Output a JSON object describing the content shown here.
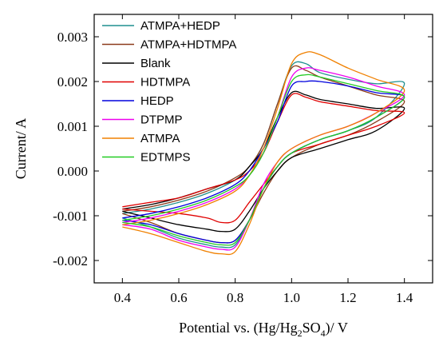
{
  "chart_data": {
    "type": "line",
    "xlabel": {
      "prefix": "Potential vs. (Hg/Hg",
      "sub1": "2",
      "mid": "SO",
      "sub2": "4",
      "suffix": ")/ V"
    },
    "ylabel": "Current/ A",
    "xlim": [
      0.3,
      1.5
    ],
    "ylim": [
      -0.0025,
      0.0035
    ],
    "xticks": [
      0.4,
      0.6,
      0.8,
      1.0,
      1.2,
      1.4
    ],
    "xtick_labels": [
      "0.4",
      "0.6",
      "0.8",
      "1.0",
      "1.2",
      "1.4"
    ],
    "yticks": [
      -0.002,
      -0.001,
      0.0,
      0.001,
      0.002,
      0.003
    ],
    "ytick_labels": [
      "-0.002",
      "-0.001",
      "0.000",
      "0.001",
      "0.002",
      "0.003"
    ],
    "legend_position": "top-left",
    "series": [
      {
        "name": "ATMPA+HEDP",
        "color": "#1f8f8f",
        "forward": [
          [
            0.4,
            -0.00095
          ],
          [
            0.5,
            -0.00085
          ],
          [
            0.6,
            -0.0007
          ],
          [
            0.7,
            -0.0005
          ],
          [
            0.8,
            -0.0002
          ],
          [
            0.85,
            0.0001
          ],
          [
            0.9,
            0.0006
          ],
          [
            0.95,
            0.0015
          ],
          [
            1.0,
            0.00235
          ],
          [
            1.05,
            0.0024
          ],
          [
            1.1,
            0.0022
          ],
          [
            1.2,
            0.00205
          ],
          [
            1.3,
            0.00195
          ],
          [
            1.4,
            0.00195
          ]
        ],
        "reverse": [
          [
            1.4,
            0.0016
          ],
          [
            1.3,
            0.0012
          ],
          [
            1.2,
            0.0009
          ],
          [
            1.1,
            0.0007
          ],
          [
            1.0,
            0.0004
          ],
          [
            0.95,
            0.0001
          ],
          [
            0.9,
            -0.0004
          ],
          [
            0.85,
            -0.0011
          ],
          [
            0.8,
            -0.00165
          ],
          [
            0.75,
            -0.0017
          ],
          [
            0.7,
            -0.00165
          ],
          [
            0.6,
            -0.0015
          ],
          [
            0.5,
            -0.00125
          ],
          [
            0.4,
            -0.00105
          ]
        ]
      },
      {
        "name": "ATMPA+HDTMPA",
        "color": "#8b3a1a",
        "forward": [
          [
            0.4,
            -0.0009
          ],
          [
            0.5,
            -0.0008
          ],
          [
            0.6,
            -0.00065
          ],
          [
            0.7,
            -0.00045
          ],
          [
            0.8,
            -0.00015
          ],
          [
            0.85,
            0.0001
          ],
          [
            0.9,
            0.0006
          ],
          [
            0.95,
            0.0015
          ],
          [
            1.0,
            0.0023
          ],
          [
            1.05,
            0.00225
          ],
          [
            1.1,
            0.0021
          ],
          [
            1.2,
            0.0019
          ],
          [
            1.3,
            0.0017
          ],
          [
            1.4,
            0.00155
          ]
        ],
        "reverse": [
          [
            1.4,
            0.0014
          ],
          [
            1.3,
            0.0011
          ],
          [
            1.2,
            0.0008
          ],
          [
            1.1,
            0.0006
          ],
          [
            1.0,
            0.0003
          ],
          [
            0.95,
            0.0
          ],
          [
            0.9,
            -0.0005
          ],
          [
            0.85,
            -0.0011
          ],
          [
            0.8,
            -0.00155
          ],
          [
            0.75,
            -0.0016
          ],
          [
            0.7,
            -0.00155
          ],
          [
            0.6,
            -0.0014
          ],
          [
            0.5,
            -0.00115
          ],
          [
            0.4,
            -0.00095
          ]
        ]
      },
      {
        "name": "Blank",
        "color": "#000000",
        "forward": [
          [
            0.4,
            -0.00085
          ],
          [
            0.5,
            -0.00075
          ],
          [
            0.6,
            -0.0006
          ],
          [
            0.7,
            -0.0004
          ],
          [
            0.8,
            -0.0002
          ],
          [
            0.85,
            0.0001
          ],
          [
            0.9,
            0.0005
          ],
          [
            0.95,
            0.0012
          ],
          [
            1.0,
            0.00175
          ],
          [
            1.05,
            0.0017
          ],
          [
            1.1,
            0.0016
          ],
          [
            1.2,
            0.0015
          ],
          [
            1.3,
            0.0014
          ],
          [
            1.4,
            0.0014
          ]
        ],
        "reverse": [
          [
            1.4,
            0.0012
          ],
          [
            1.3,
            0.0009
          ],
          [
            1.2,
            0.0007
          ],
          [
            1.1,
            0.0005
          ],
          [
            1.0,
            0.0003
          ],
          [
            0.95,
            0.0
          ],
          [
            0.9,
            -0.0004
          ],
          [
            0.85,
            -0.0009
          ],
          [
            0.8,
            -0.0013
          ],
          [
            0.75,
            -0.00135
          ],
          [
            0.7,
            -0.0013
          ],
          [
            0.6,
            -0.0012
          ],
          [
            0.5,
            -0.00105
          ],
          [
            0.4,
            -0.0009
          ]
        ]
      },
      {
        "name": "HDTMPA",
        "color": "#e00000",
        "forward": [
          [
            0.4,
            -0.0008
          ],
          [
            0.5,
            -0.0007
          ],
          [
            0.6,
            -0.0006
          ],
          [
            0.7,
            -0.0004
          ],
          [
            0.8,
            -0.0002
          ],
          [
            0.85,
            0.0
          ],
          [
            0.9,
            0.0004
          ],
          [
            0.95,
            0.0011
          ],
          [
            1.0,
            0.0017
          ],
          [
            1.05,
            0.00165
          ],
          [
            1.1,
            0.00155
          ],
          [
            1.2,
            0.00145
          ],
          [
            1.3,
            0.00135
          ],
          [
            1.4,
            0.0013
          ]
        ],
        "reverse": [
          [
            1.4,
            0.00125
          ],
          [
            1.3,
            0.001
          ],
          [
            1.2,
            0.0008
          ],
          [
            1.1,
            0.0006
          ],
          [
            1.0,
            0.0004
          ],
          [
            0.95,
            0.0001
          ],
          [
            0.9,
            -0.0003
          ],
          [
            0.85,
            -0.0007
          ],
          [
            0.8,
            -0.0011
          ],
          [
            0.75,
            -0.00115
          ],
          [
            0.7,
            -0.00105
          ],
          [
            0.6,
            -0.00095
          ],
          [
            0.5,
            -0.0009
          ],
          [
            0.4,
            -0.00085
          ]
        ]
      },
      {
        "name": "HEDP",
        "color": "#0000dd",
        "forward": [
          [
            0.4,
            -0.00105
          ],
          [
            0.5,
            -0.00095
          ],
          [
            0.6,
            -0.0008
          ],
          [
            0.7,
            -0.0006
          ],
          [
            0.8,
            -0.0003
          ],
          [
            0.85,
            0.0
          ],
          [
            0.9,
            0.0005
          ],
          [
            0.95,
            0.0011
          ],
          [
            1.0,
            0.0019
          ],
          [
            1.05,
            0.002
          ],
          [
            1.1,
            0.002
          ],
          [
            1.2,
            0.0019
          ],
          [
            1.3,
            0.00175
          ],
          [
            1.4,
            0.00165
          ]
        ],
        "reverse": [
          [
            1.4,
            0.0015
          ],
          [
            1.3,
            0.0012
          ],
          [
            1.2,
            0.0009
          ],
          [
            1.1,
            0.0007
          ],
          [
            1.0,
            0.0004
          ],
          [
            0.95,
            0.0001
          ],
          [
            0.9,
            -0.0004
          ],
          [
            0.85,
            -0.0011
          ],
          [
            0.8,
            -0.00155
          ],
          [
            0.75,
            -0.0016
          ],
          [
            0.7,
            -0.00155
          ],
          [
            0.6,
            -0.0014
          ],
          [
            0.5,
            -0.0012
          ],
          [
            0.4,
            -0.0011
          ]
        ]
      },
      {
        "name": "DTPMP",
        "color": "#ee00ee",
        "forward": [
          [
            0.4,
            -0.00115
          ],
          [
            0.5,
            -0.00105
          ],
          [
            0.6,
            -0.0009
          ],
          [
            0.7,
            -0.0007
          ],
          [
            0.8,
            -0.0004
          ],
          [
            0.85,
            -0.0001
          ],
          [
            0.9,
            0.0004
          ],
          [
            0.95,
            0.0012
          ],
          [
            1.0,
            0.0021
          ],
          [
            1.05,
            0.0023
          ],
          [
            1.1,
            0.00225
          ],
          [
            1.2,
            0.0021
          ],
          [
            1.3,
            0.0019
          ],
          [
            1.4,
            0.0017
          ]
        ],
        "reverse": [
          [
            1.4,
            0.0016
          ],
          [
            1.3,
            0.0013
          ],
          [
            1.2,
            0.001
          ],
          [
            1.1,
            0.0008
          ],
          [
            1.0,
            0.0005
          ],
          [
            0.95,
            0.0002
          ],
          [
            0.9,
            -0.0003
          ],
          [
            0.85,
            -0.0011
          ],
          [
            0.8,
            -0.0017
          ],
          [
            0.75,
            -0.00175
          ],
          [
            0.7,
            -0.0017
          ],
          [
            0.6,
            -0.00155
          ],
          [
            0.5,
            -0.0013
          ],
          [
            0.4,
            -0.0012
          ]
        ]
      },
      {
        "name": "ATMPA",
        "color": "#f08000",
        "forward": [
          [
            0.4,
            -0.0012
          ],
          [
            0.5,
            -0.0011
          ],
          [
            0.6,
            -0.00095
          ],
          [
            0.7,
            -0.00075
          ],
          [
            0.8,
            -0.00045
          ],
          [
            0.85,
            -0.0001
          ],
          [
            0.9,
            0.0005
          ],
          [
            0.95,
            0.0014
          ],
          [
            1.0,
            0.0024
          ],
          [
            1.05,
            0.00265
          ],
          [
            1.1,
            0.0026
          ],
          [
            1.2,
            0.0023
          ],
          [
            1.3,
            0.00205
          ],
          [
            1.4,
            0.0018
          ]
        ],
        "reverse": [
          [
            1.4,
            0.0017
          ],
          [
            1.3,
            0.0013
          ],
          [
            1.2,
            0.001
          ],
          [
            1.1,
            0.0008
          ],
          [
            1.0,
            0.0005
          ],
          [
            0.95,
            0.0002
          ],
          [
            0.9,
            -0.0004
          ],
          [
            0.85,
            -0.0012
          ],
          [
            0.8,
            -0.0018
          ],
          [
            0.75,
            -0.00185
          ],
          [
            0.7,
            -0.0018
          ],
          [
            0.6,
            -0.0016
          ],
          [
            0.5,
            -0.0014
          ],
          [
            0.4,
            -0.00125
          ]
        ]
      },
      {
        "name": "EDTMPS",
        "color": "#22cc22",
        "forward": [
          [
            0.4,
            -0.0011
          ],
          [
            0.5,
            -0.001
          ],
          [
            0.6,
            -0.00085
          ],
          [
            0.7,
            -0.00065
          ],
          [
            0.8,
            -0.00035
          ],
          [
            0.85,
            -0.0001
          ],
          [
            0.9,
            0.0004
          ],
          [
            0.95,
            0.0012
          ],
          [
            1.0,
            0.002
          ],
          [
            1.05,
            0.00215
          ],
          [
            1.1,
            0.0021
          ],
          [
            1.2,
            0.00195
          ],
          [
            1.3,
            0.0018
          ],
          [
            1.4,
            0.00165
          ]
        ],
        "reverse": [
          [
            1.4,
            0.0015
          ],
          [
            1.3,
            0.0012
          ],
          [
            1.2,
            0.0009
          ],
          [
            1.1,
            0.0007
          ],
          [
            1.0,
            0.0004
          ],
          [
            0.95,
            0.0001
          ],
          [
            0.9,
            -0.0004
          ],
          [
            0.85,
            -0.0011
          ],
          [
            0.8,
            -0.0016
          ],
          [
            0.75,
            -0.00165
          ],
          [
            0.7,
            -0.0016
          ],
          [
            0.6,
            -0.00145
          ],
          [
            0.5,
            -0.00125
          ],
          [
            0.4,
            -0.00115
          ]
        ]
      }
    ]
  }
}
